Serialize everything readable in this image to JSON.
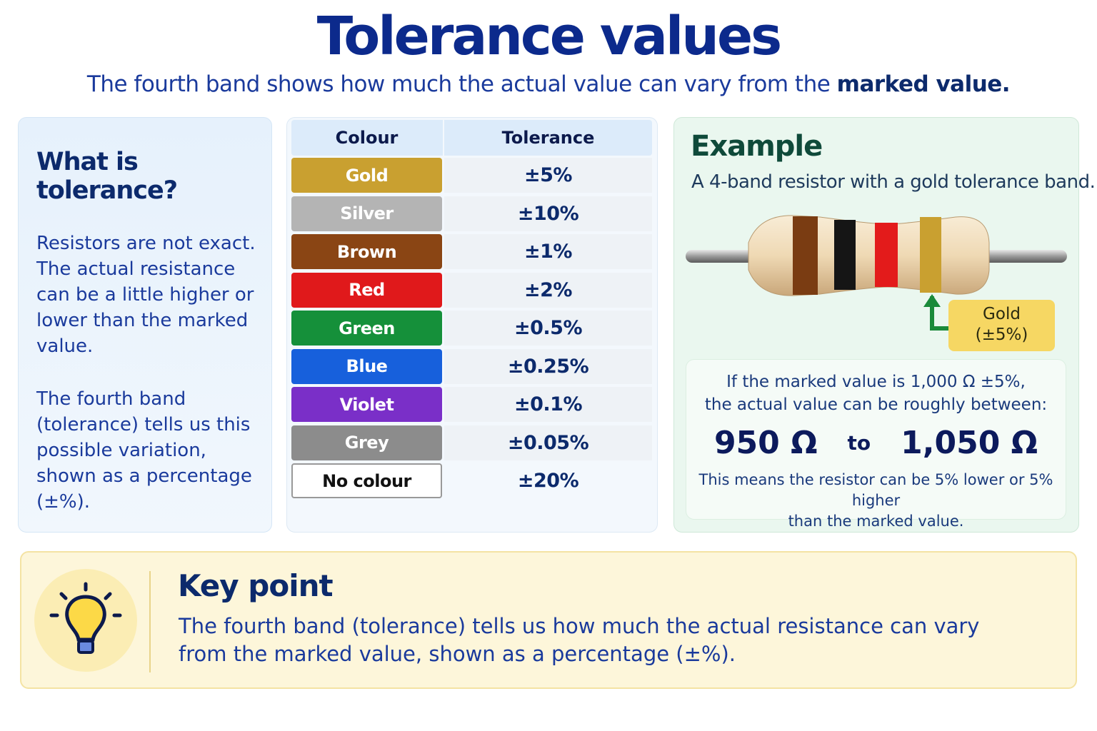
{
  "header": {
    "title": "Tolerance values",
    "subtitle": "The fourth band shows how much the actual value can vary from the",
    "subtitle_bold": "marked value."
  },
  "info": {
    "title": "What is tolerance?",
    "paragraphs": [
      "Resistors are not exact. The actual resistance can be a little higher or lower than the marked value.",
      "The fourth band (tolerance) tells us this possible variation, shown as a percentage (±%)."
    ]
  },
  "table": {
    "columns": [
      "Colour",
      "Tolerance"
    ],
    "rows": [
      {
        "colour": "Gold",
        "tolerance": "±5%",
        "color": "#c9a030",
        "text_color": "#ffffff"
      },
      {
        "colour": "Silver",
        "tolerance": "±10%",
        "color": "#b4b4b4",
        "text_color": "#ffffff"
      },
      {
        "colour": "Brown",
        "tolerance": "±1%",
        "color": "#8a4514",
        "text_color": "#ffffff"
      },
      {
        "colour": "Red",
        "tolerance": "±2%",
        "color": "#e0191b",
        "text_color": "#ffffff"
      },
      {
        "colour": "Green",
        "tolerance": "±0.5%",
        "color": "#15903a",
        "text_color": "#ffffff"
      },
      {
        "colour": "Blue",
        "tolerance": "±0.25%",
        "color": "#1760dc",
        "text_color": "#ffffff"
      },
      {
        "colour": "Violet",
        "tolerance": "±0.1%",
        "color": "#7a2fc8",
        "text_color": "#ffffff"
      },
      {
        "colour": "Grey",
        "tolerance": "±0.05%",
        "color": "#8c8c8c",
        "text_color": "#ffffff"
      },
      {
        "colour": "No colour",
        "tolerance": "±20%",
        "color": "#ffffff",
        "text_color": "#111111"
      }
    ]
  },
  "example": {
    "title": "Example",
    "description": "A 4-band resistor with a gold tolerance band.",
    "callout": [
      "Gold",
      "(±5%)"
    ],
    "statement": [
      "If the marked value is 1,000 Ω ±5%,",
      "the actual value can be roughly between:"
    ],
    "low": "950 Ω",
    "to": "to",
    "high": "1,050 Ω",
    "note": [
      "This means the resistor can be 5% lower or 5% higher",
      "than the marked value."
    ]
  },
  "key_point": {
    "title": "Key point",
    "text": [
      "The fourth band (tolerance) tells us how much the actual resistance can vary",
      "from the marked value, shown as a percentage (±%)."
    ]
  }
}
